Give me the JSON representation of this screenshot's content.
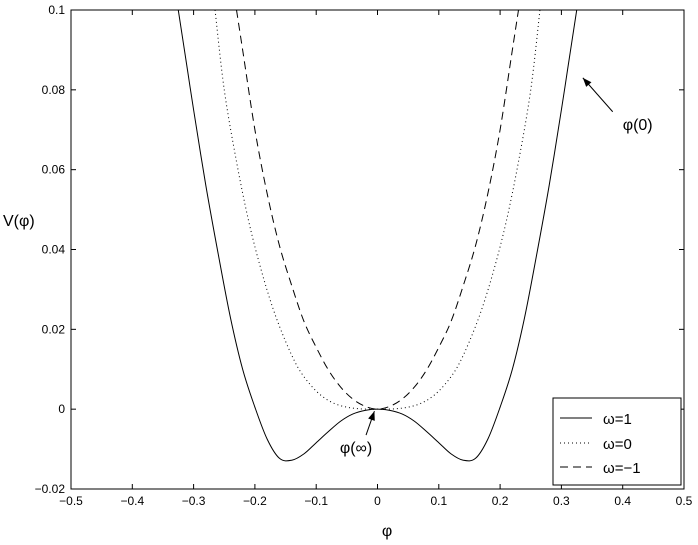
{
  "chart_data": {
    "type": "line",
    "title": "",
    "xlabel": "φ",
    "ylabel": "V(φ)",
    "xlim": [
      -0.5,
      0.5
    ],
    "ylim": [
      -0.02,
      0.1
    ],
    "x_ticks": [
      -0.5,
      -0.4,
      -0.3,
      -0.2,
      -0.1,
      0,
      0.1,
      0.2,
      0.3,
      0.4,
      0.5
    ],
    "x_tick_labels": [
      "−0.5",
      "−0.4",
      "−0.3",
      "−0.2",
      "−0.1",
      "0",
      "0.1",
      "0.2",
      "0.3",
      "0.4",
      "0.5"
    ],
    "y_ticks": [
      -0.02,
      0,
      0.02,
      0.04,
      0.06,
      0.08,
      0.1
    ],
    "y_tick_labels": [
      "−0.02",
      "0",
      "0.02",
      "0.04",
      "0.06",
      "0.08",
      "0.1"
    ],
    "grid": false,
    "legend_position": "bottom-right",
    "series": [
      {
        "name": "ω=1",
        "style": "solid",
        "x": [
          -0.325,
          -0.31,
          -0.3,
          -0.28,
          -0.26,
          -0.24,
          -0.22,
          -0.2,
          -0.18,
          -0.16,
          -0.14,
          -0.12,
          -0.1,
          -0.08,
          -0.06,
          -0.04,
          -0.02,
          0,
          0.02,
          0.04,
          0.06,
          0.08,
          0.1,
          0.12,
          0.14,
          0.16,
          0.18,
          0.2,
          0.22,
          0.24,
          0.26,
          0.28,
          0.3,
          0.31,
          0.325
        ],
        "y": [
          0.1,
          0.085,
          0.075,
          0.056,
          0.039,
          0.023,
          0.01,
          0.0005,
          -0.0075,
          -0.0123,
          -0.0128,
          -0.0112,
          -0.0084,
          -0.0056,
          -0.003,
          -0.0012,
          -0.0003,
          0,
          -0.0003,
          -0.0012,
          -0.003,
          -0.0056,
          -0.0084,
          -0.0112,
          -0.0128,
          -0.0123,
          -0.0075,
          0.0005,
          0.01,
          0.023,
          0.039,
          0.056,
          0.075,
          0.085,
          0.1
        ]
      },
      {
        "name": "ω=0",
        "style": "dotted",
        "x": [
          -0.265,
          -0.25,
          -0.23,
          -0.21,
          -0.19,
          -0.17,
          -0.15,
          -0.13,
          -0.11,
          -0.09,
          -0.07,
          -0.05,
          -0.03,
          -0.01,
          0,
          0.01,
          0.03,
          0.05,
          0.07,
          0.09,
          0.11,
          0.13,
          0.15,
          0.17,
          0.19,
          0.21,
          0.23,
          0.25,
          0.265
        ],
        "y": [
          0.1,
          0.08,
          0.062,
          0.047,
          0.035,
          0.025,
          0.017,
          0.0105,
          0.0062,
          0.0032,
          0.0014,
          0.0005,
          0.0001,
          0,
          0,
          0,
          0.0001,
          0.0005,
          0.0014,
          0.0032,
          0.0062,
          0.0105,
          0.017,
          0.025,
          0.035,
          0.047,
          0.062,
          0.08,
          0.1
        ]
      },
      {
        "name": "ω=−1",
        "style": "dashed",
        "x": [
          -0.23,
          -0.22,
          -0.2,
          -0.18,
          -0.16,
          -0.14,
          -0.12,
          -0.1,
          -0.08,
          -0.06,
          -0.04,
          -0.02,
          0,
          0.02,
          0.04,
          0.06,
          0.08,
          0.1,
          0.12,
          0.14,
          0.16,
          0.18,
          0.2,
          0.22,
          0.23
        ],
        "y": [
          0.1,
          0.09,
          0.07,
          0.054,
          0.041,
          0.031,
          0.022,
          0.0155,
          0.0098,
          0.0055,
          0.0025,
          0.0007,
          0,
          0.0007,
          0.0025,
          0.0055,
          0.0098,
          0.0155,
          0.022,
          0.031,
          0.041,
          0.054,
          0.07,
          0.09,
          0.1
        ]
      }
    ],
    "annotations": [
      {
        "text": "φ(0)",
        "x": 0.335,
        "y": 0.083,
        "text_x": 0.4,
        "text_y": 0.07
      },
      {
        "text": "φ(∞)",
        "x": -0.005,
        "y": -0.0005,
        "text_x": -0.035,
        "text_y": -0.011
      }
    ]
  }
}
